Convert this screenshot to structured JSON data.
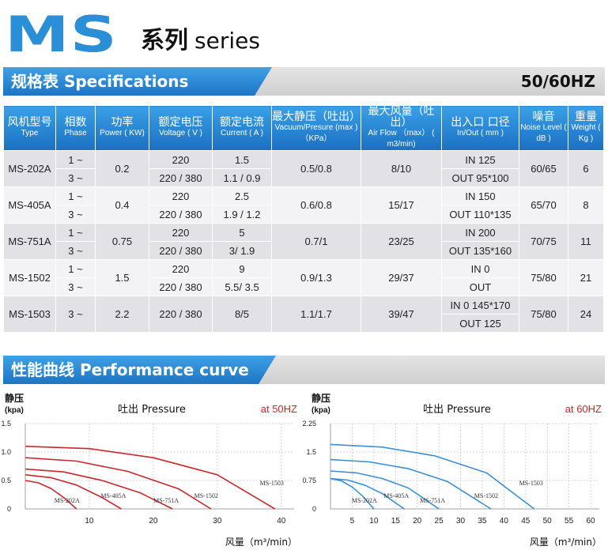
{
  "title": {
    "ms": "MS",
    "cn": "系列",
    "en": "series"
  },
  "spec_banner": {
    "label": "规格表 Specifications",
    "right": "50/60HZ"
  },
  "table": {
    "headers": [
      {
        "cn": "风机型号",
        "en": "Type"
      },
      {
        "cn": "相数",
        "en": "Phase"
      },
      {
        "cn": "功率",
        "en": "Power ( KW)"
      },
      {
        "cn": "额定电压",
        "en": "Voltage ( V )"
      },
      {
        "cn": "额定电流",
        "en": "Current ( A )"
      },
      {
        "cn": "最大静压（吐出）",
        "en": "Vacuum/Presure (max )（KPa）"
      },
      {
        "cn": "最大风量（吐出）",
        "en": "Air Flow （max） ( m3/min)"
      },
      {
        "cn": "出入口 口径",
        "en": "In/Out ( mm )"
      },
      {
        "cn": "噪音",
        "en": "Noise Level ( dB )"
      },
      {
        "cn": "重量",
        "en": "Weight ( Kg )"
      }
    ],
    "rows": [
      {
        "type": "MS-202A",
        "phase": [
          "1 ~",
          "3 ~"
        ],
        "power": "0.2",
        "voltage": [
          "220",
          "220 / 380"
        ],
        "current": [
          "1.5",
          "1.1 / 0.9"
        ],
        "pressure": "0.5/0.8",
        "airflow": "8/10",
        "inout": [
          "IN 125",
          "OUT 95*100"
        ],
        "noise": "60/65",
        "weight": "6"
      },
      {
        "type": "MS-405A",
        "phase": [
          "1 ~",
          "3 ~"
        ],
        "power": "0.4",
        "voltage": [
          "220",
          "220 / 380"
        ],
        "current": [
          "2.5",
          "1.9 / 1.2"
        ],
        "pressure": "0.6/0.8",
        "airflow": "15/17",
        "inout": [
          "IN 150",
          "OUT 110*135"
        ],
        "noise": "65/70",
        "weight": "8"
      },
      {
        "type": "MS-751A",
        "phase": [
          "1 ~",
          "3 ~"
        ],
        "power": "0.75",
        "voltage": [
          "220",
          "220 / 380"
        ],
        "current": [
          "5",
          "3/ 1.9"
        ],
        "pressure": "0.7/1",
        "airflow": "23/25",
        "inout": [
          "IN 200",
          "OUT 135*160"
        ],
        "noise": "70/75",
        "weight": "11"
      },
      {
        "type": "MS-1502",
        "phase": [
          "1 ~",
          "3 ~"
        ],
        "power": "1.5",
        "voltage": [
          "220",
          "220 / 380"
        ],
        "current": [
          "9",
          "5.5/ 3.5"
        ],
        "pressure": "0.9/1.3",
        "airflow": "29/37",
        "inout": [
          "IN 0",
          "OUT"
        ],
        "noise": "75/80",
        "weight": "21"
      },
      {
        "type": "MS-1503",
        "phase": [
          "3 ~"
        ],
        "power": "2.2",
        "voltage": [
          "220 / 380"
        ],
        "current": [
          "8/5"
        ],
        "pressure": "1.1/1.7",
        "airflow": "39/47",
        "inout": [
          "IN 0 145*170",
          "OUT 125"
        ],
        "noise": "75/80",
        "weight": "24"
      }
    ]
  },
  "perf_banner": {
    "label": "性能曲线 Performance curve"
  },
  "chart_data": [
    {
      "type": "line",
      "title": "吐出 Pressure",
      "freq_label": "at 50HZ",
      "ylabel": "静压",
      "yunit": "(kpa)",
      "xlabel": "风量（m³/min）",
      "xlim": [
        0,
        42
      ],
      "ylim": [
        0,
        1.5
      ],
      "xticks": [
        "10",
        "20",
        "30",
        "40"
      ],
      "yticks": [
        "0",
        "0.5",
        "1.0",
        "1.5"
      ],
      "color": "#c8282c",
      "grid": true,
      "series": [
        {
          "name": "MS-202A",
          "x": [
            0,
            2,
            4,
            6,
            8
          ],
          "y": [
            0.5,
            0.46,
            0.36,
            0.2,
            0
          ]
        },
        {
          "name": "MS-405A",
          "x": [
            0,
            4,
            8,
            12,
            15
          ],
          "y": [
            0.6,
            0.55,
            0.42,
            0.2,
            0
          ]
        },
        {
          "name": "MS-751A",
          "x": [
            0,
            6,
            12,
            18,
            23
          ],
          "y": [
            0.7,
            0.65,
            0.5,
            0.28,
            0
          ]
        },
        {
          "name": "MS-1502",
          "x": [
            0,
            8,
            16,
            24,
            29
          ],
          "y": [
            0.9,
            0.84,
            0.66,
            0.35,
            0
          ]
        },
        {
          "name": "MS-1503",
          "x": [
            0,
            10,
            20,
            30,
            39
          ],
          "y": [
            1.1,
            1.06,
            0.9,
            0.6,
            0
          ]
        }
      ]
    },
    {
      "type": "line",
      "title": "吐出 Pressure",
      "freq_label": "at 60HZ",
      "ylabel": "静压",
      "yunit": "(kpa)",
      "xlabel": "风量（m³/min）",
      "xlim": [
        0,
        62
      ],
      "ylim": [
        0,
        2.25
      ],
      "xticks": [
        "5",
        "10",
        "15",
        "20",
        "25",
        "30",
        "35",
        "40",
        "45",
        "50",
        "55",
        "60"
      ],
      "yticks": [
        "0",
        "0.75",
        "1.5",
        "2.25"
      ],
      "color": "#3a8fd8",
      "grid": true,
      "series": [
        {
          "name": "MS-202A",
          "x": [
            0,
            2.5,
            5,
            7.5,
            10
          ],
          "y": [
            0.8,
            0.74,
            0.58,
            0.33,
            0
          ]
        },
        {
          "name": "MS-405A",
          "x": [
            0,
            4,
            8,
            12,
            17
          ],
          "y": [
            0.8,
            0.76,
            0.62,
            0.4,
            0
          ]
        },
        {
          "name": "MS-751A",
          "x": [
            0,
            6,
            12,
            18,
            25
          ],
          "y": [
            1.0,
            0.95,
            0.8,
            0.55,
            0
          ]
        },
        {
          "name": "MS-1502",
          "x": [
            0,
            9,
            18,
            27,
            37
          ],
          "y": [
            1.3,
            1.24,
            1.06,
            0.72,
            0
          ]
        },
        {
          "name": "MS-1503",
          "x": [
            0,
            12,
            24,
            36,
            47
          ],
          "y": [
            1.7,
            1.63,
            1.4,
            0.95,
            0
          ]
        }
      ]
    }
  ]
}
